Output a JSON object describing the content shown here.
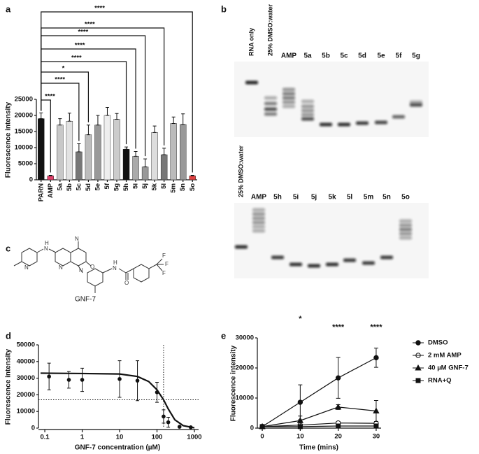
{
  "panel_labels": [
    "a",
    "b",
    "c",
    "d",
    "e"
  ],
  "chart_data": [
    {
      "type": "bar",
      "ylabel": "Fluorescence intensity",
      "categories": [
        "PARN",
        "AMP",
        "5a",
        "5b",
        "5c",
        "5d",
        "5e",
        "5f",
        "5g",
        "5h",
        "5i",
        "5j",
        "5k",
        "5l",
        "5m",
        "5n",
        "5o"
      ],
      "values": [
        19000,
        1200,
        17000,
        18200,
        8700,
        14000,
        17000,
        20000,
        18800,
        9500,
        7300,
        4000,
        14700,
        7800,
        17500,
        17200,
        1200
      ],
      "errors": [
        1800,
        200,
        2000,
        2500,
        2500,
        3000,
        3000,
        2500,
        1800,
        700,
        1500,
        2500,
        2000,
        2000,
        2000,
        3300,
        200
      ],
      "colors": [
        "#111111",
        "#e0406a",
        "#c8c8c8",
        "#e2e2e2",
        "#777777",
        "#bdbdbd",
        "#999999",
        "#eeeeee",
        "#cccccc",
        "#111111",
        "#aaaaaa",
        "#999999",
        "#dddddd",
        "#777777",
        "#bbbbbb",
        "#999999",
        "#e04040"
      ],
      "ylim": [
        0,
        25000
      ],
      "yticks": [
        0,
        5000,
        10000,
        15000,
        20000,
        25000
      ],
      "significance": [
        {
          "index": 1,
          "label": "****"
        },
        {
          "index": 4,
          "label": "****"
        },
        {
          "index": 5,
          "label": "*"
        },
        {
          "index": 9,
          "label": "****"
        },
        {
          "index": 10,
          "label": "****"
        },
        {
          "index": 11,
          "label": "****"
        },
        {
          "index": 13,
          "label": "****"
        },
        {
          "index": 16,
          "label": "****"
        }
      ]
    },
    {
      "type": "scatter",
      "xlabel": "GNF-7 concentration (µM)",
      "ylabel": "Fluorescence intensity",
      "x": [
        0.13,
        0.44,
        1,
        10,
        30,
        100,
        150,
        200,
        400,
        800
      ],
      "values": [
        31000,
        29000,
        29000,
        29500,
        28500,
        21500,
        7000,
        3500,
        800,
        500
      ],
      "errors": [
        8000,
        5000,
        7000,
        11000,
        12000,
        6000,
        4000,
        3000,
        300,
        300
      ],
      "color": "#111111",
      "xscale": "log",
      "xlim": [
        0.077,
        1000
      ],
      "xticks": [
        0.1,
        1,
        10,
        100,
        1000
      ],
      "ylim": [
        0,
        50000
      ],
      "yticks": [
        0,
        10000,
        20000,
        30000,
        40000,
        50000
      ],
      "fit": {
        "x": [
          0.077,
          1,
          10,
          30,
          60,
          100,
          150,
          200,
          300,
          500,
          1000
        ],
        "values": [
          33000,
          32800,
          32500,
          31000,
          28000,
          23000,
          17000,
          11500,
          5000,
          1500,
          200
        ]
      },
      "reference_lines": {
        "x": 150,
        "y": 17000
      }
    },
    {
      "type": "line",
      "xlabel": "Time (mins)",
      "ylabel": "Fluorescence intensity",
      "x": [
        0,
        10,
        20,
        30
      ],
      "series": [
        {
          "name": "DMSO",
          "color": "#111111",
          "marker": "circle",
          "values": [
            500,
            8600,
            16700,
            23400
          ],
          "errors": [
            200,
            5800,
            6800,
            3200
          ]
        },
        {
          "name": "2 mM AMP",
          "color": "#111111",
          "marker": "open-circle",
          "values": [
            500,
            1000,
            1700,
            1600
          ],
          "errors": [
            200,
            400,
            500,
            500
          ]
        },
        {
          "name": "40 µM GNF-7",
          "color": "#111111",
          "marker": "triangle",
          "values": [
            500,
            2500,
            7000,
            5700
          ],
          "errors": [
            200,
            1500,
            800,
            3500
          ]
        },
        {
          "name": "RNA+Q",
          "color": "#111111",
          "marker": "square",
          "values": [
            500,
            500,
            700,
            700
          ],
          "errors": [
            100,
            200,
            200,
            200
          ]
        }
      ],
      "xlim": [
        -1.3,
        31.3
      ],
      "xticks": [
        0,
        10,
        20,
        30
      ],
      "ylim": [
        0,
        30000
      ],
      "yticks": [
        0,
        10000,
        20000,
        30000
      ],
      "significance": [
        {
          "x": 10,
          "label": "*"
        },
        {
          "x": 20,
          "label": "****"
        },
        {
          "x": 30,
          "label": "****"
        }
      ],
      "legend": "right"
    }
  ],
  "gel": {
    "top_lanes": [
      "RNA only",
      "25% DMSO:water",
      "AMP",
      "5a",
      "5b",
      "5c",
      "5d",
      "5e",
      "5f",
      "5g"
    ],
    "bottom_lanes": [
      "25% DMSO:water",
      "AMP",
      "5h",
      "5i",
      "5j",
      "5k",
      "5l",
      "5m",
      "5n",
      "5o"
    ]
  },
  "structure": {
    "name": "GNF-7",
    "atoms": [
      "N",
      "H",
      "N",
      "N",
      "N",
      "O",
      "N",
      "H",
      "N",
      "O",
      "F",
      "F",
      "F"
    ]
  }
}
